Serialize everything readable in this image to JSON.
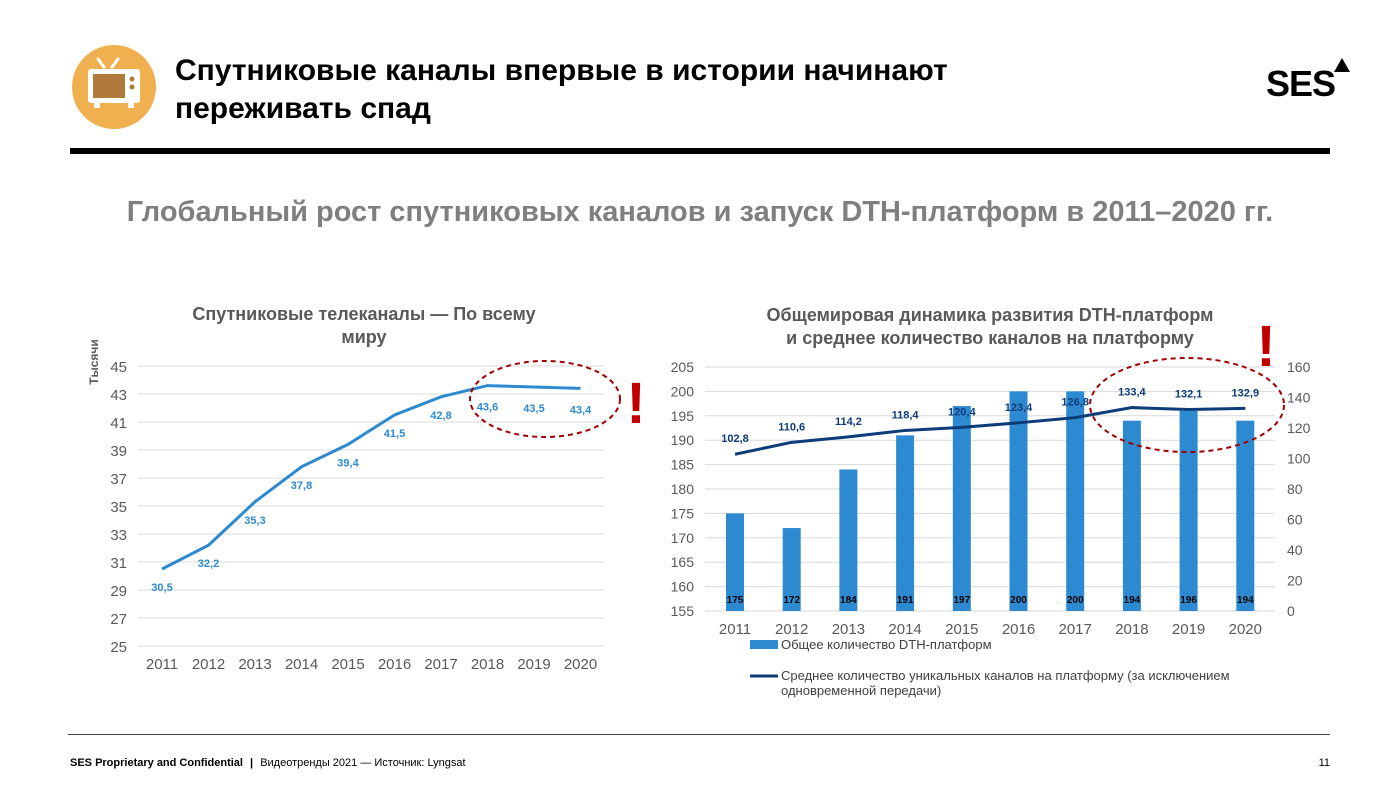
{
  "header": {
    "title_line1": "Спутниковые каналы впервые в истории начинают",
    "title_line2": "переживать спад",
    "logo_text": "SES"
  },
  "subtitle": "Глобальный рост спутниковых каналов и запуск DTH-платформ в 2011–2020 гг.",
  "colors": {
    "line_blue": "#2e8ad0",
    "bar_blue": "#2e8ad0",
    "dark_blue": "#0d3c7a",
    "highlight_red": "#c00000",
    "grey_text": "#7f7f7f"
  },
  "chart_data": [
    {
      "type": "line",
      "title_line1": "Спутниковые телеканалы — По всему",
      "title_line2": "миру",
      "ylabel": "Тысячи",
      "categories": [
        "2011",
        "2012",
        "2013",
        "2014",
        "2015",
        "2016",
        "2017",
        "2018",
        "2019",
        "2020"
      ],
      "values": [
        30.5,
        32.2,
        35.3,
        37.8,
        39.4,
        41.5,
        42.8,
        43.6,
        43.5,
        43.4
      ],
      "value_labels": [
        "30,5",
        "32,2",
        "35,3",
        "37,8",
        "39,4",
        "41,5",
        "42,8",
        "43,6",
        "43,5",
        "43,4"
      ],
      "ylim": [
        25,
        45
      ],
      "yticks": [
        "25",
        "27",
        "29",
        "31",
        "33",
        "35",
        "37",
        "39",
        "41",
        "43",
        "45"
      ],
      "grid": true,
      "annotation": "!"
    },
    {
      "type": "bar",
      "title_line1": "Общемировая динамика развития DTH-платформ",
      "title_line2": "и среднее количество каналов на платформу",
      "categories": [
        "2011",
        "2012",
        "2013",
        "2014",
        "2015",
        "2016",
        "2017",
        "2018",
        "2019",
        "2020"
      ],
      "series": [
        {
          "name": "Общее количество DTH-платформ",
          "type": "bar",
          "axis": "left",
          "values": [
            175,
            172,
            184,
            191,
            197,
            200,
            200,
            194,
            196,
            194
          ],
          "value_labels": [
            "175",
            "172",
            "184",
            "191",
            "197",
            "200",
            "200",
            "194",
            "196",
            "194"
          ]
        },
        {
          "name_line1": "Среднее количество уникальных каналов на платформу (за исключением",
          "name_line2": "одновременной передачи)",
          "type": "line",
          "axis": "right",
          "values": [
            102.8,
            110.6,
            114.2,
            118.4,
            120.4,
            123.4,
            126.8,
            133.4,
            132.1,
            132.9
          ],
          "value_labels": [
            "102,8",
            "110,6",
            "114,2",
            "118,4",
            "120,4",
            "123,4",
            "126,8",
            "133,4",
            "132,1",
            "132,9"
          ]
        }
      ],
      "ylim_left": [
        155,
        205
      ],
      "yticks_left": [
        "155",
        "160",
        "165",
        "170",
        "175",
        "180",
        "185",
        "190",
        "195",
        "200",
        "205"
      ],
      "ylim_right": [
        0,
        160
      ],
      "yticks_right": [
        "0",
        "20",
        "40",
        "60",
        "80",
        "100",
        "120",
        "140",
        "160"
      ],
      "grid": true,
      "legend": "bottom",
      "annotation": "!"
    }
  ],
  "footer": {
    "confidential": "SES Proprietary and Confidential",
    "separator": "|",
    "source": "Видеотренды 2021 — Источник: Lyngsat",
    "page": "11"
  }
}
